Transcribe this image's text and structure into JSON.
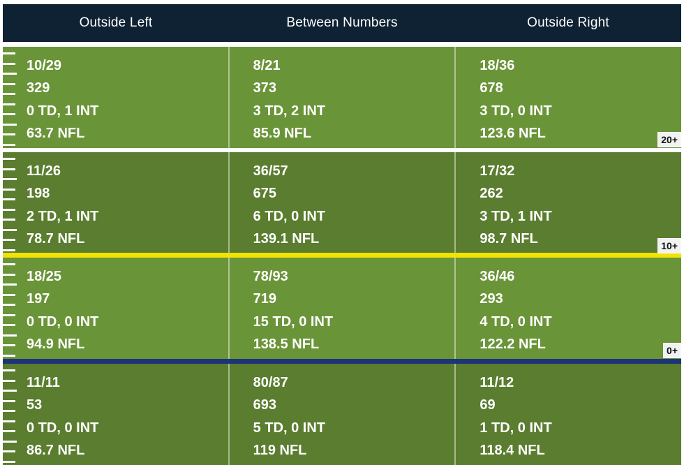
{
  "chart_data": {
    "type": "table",
    "columns": [
      "Outside Left",
      "Between Numbers",
      "Outside Right"
    ],
    "zones": [
      {
        "label": "20+",
        "cells": [
          [
            "10/29",
            "329",
            "0 TD, 1 INT",
            "63.7 NFL"
          ],
          [
            "8/21",
            "373",
            "3 TD, 2 INT",
            "85.9 NFL"
          ],
          [
            "18/36",
            "678",
            "3 TD, 0 INT",
            "123.6 NFL"
          ]
        ]
      },
      {
        "label": "10+",
        "cells": [
          [
            "11/26",
            "198",
            "2 TD, 1 INT",
            "78.7 NFL"
          ],
          [
            "36/57",
            "675",
            "6 TD, 0 INT",
            "139.1 NFL"
          ],
          [
            "17/32",
            "262",
            "3 TD, 1 INT",
            "98.7 NFL"
          ]
        ]
      },
      {
        "label": "0+",
        "cells": [
          [
            "18/25",
            "197",
            "0 TD, 0 INT",
            "94.9 NFL"
          ],
          [
            "78/93",
            "719",
            "15 TD, 0 INT",
            "138.5 NFL"
          ],
          [
            "36/46",
            "293",
            "4 TD, 0 INT",
            "122.2 NFL"
          ]
        ]
      },
      {
        "label": "",
        "cells": [
          [
            "11/11",
            "53",
            "0 TD, 0 INT",
            "86.7 NFL"
          ],
          [
            "80/87",
            "693",
            "5 TD, 0 INT",
            "119 NFL"
          ],
          [
            "11/12",
            "69",
            "1 TD, 0 INT",
            "118.4 NFL"
          ]
        ]
      }
    ],
    "colors": {
      "header_bg": "#0f2233",
      "field_light": "#6a9438",
      "field_dark": "#5a7d2f",
      "line_white": "#ffffff",
      "line_yellow": "#f2e205",
      "line_blue": "#1c3478"
    }
  }
}
